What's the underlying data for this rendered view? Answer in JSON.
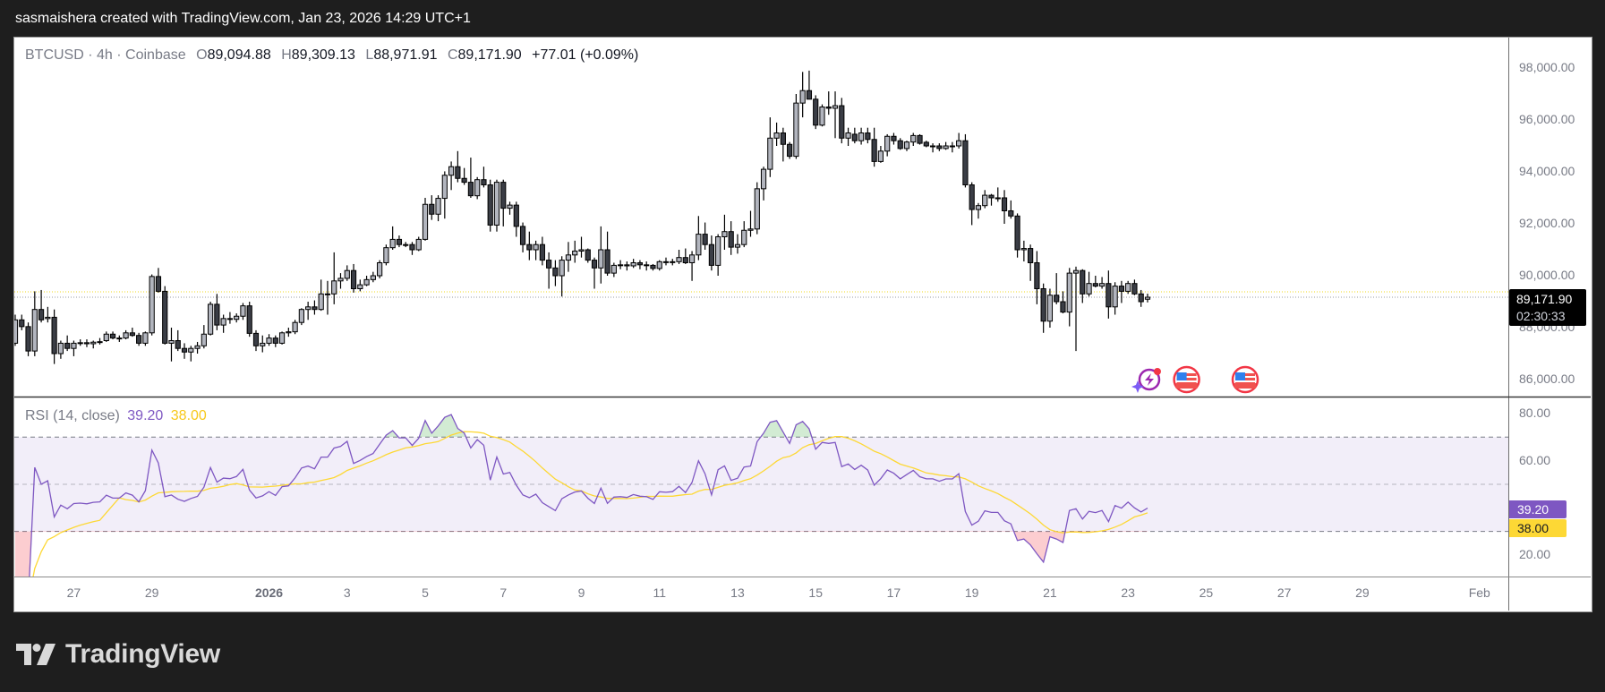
{
  "caption": "sasmaishera created with TradingView.com, Jan 23, 2026 14:29 UTC+1",
  "legend": {
    "symbol": "BTCUSD",
    "interval": "4h",
    "exchange": "Coinbase",
    "sep": "·",
    "o_label": "O",
    "o_value": "89,094.88",
    "h_label": "H",
    "h_value": "89,309.13",
    "l_label": "L",
    "l_value": "88,971.91",
    "c_label": "C",
    "c_value": "89,171.90",
    "change": "+77.01 (+0.09%)"
  },
  "price_tag": {
    "price": "89,171.90",
    "countdown": "02:30:33"
  },
  "rsi_legend": {
    "name": "RSI (14, close)",
    "value": "39.20",
    "ma_value": "38.00"
  },
  "rsi_tags": {
    "value": "39.20",
    "ma_value": "38.00"
  },
  "logo": {
    "text": "TradingView"
  },
  "colors": {
    "up_fill": "#b2b5be",
    "down_fill": "#3a3d45",
    "border": "#000000",
    "rsi_line": "#7e57c2",
    "rsi_ma": "#fdd835",
    "rsi_band": "#7e57c2",
    "last_price_line": "#9598a1",
    "reference_line": "#f2d91c",
    "overbought_fill": "#4caf50",
    "oversold_fill": "#f23645"
  },
  "events": [
    {
      "icon": "lightning-event-icon",
      "date": "2026-01-23 12:00"
    },
    {
      "icon": "us-flag-event-icon",
      "date": "2026-01-24 12:00"
    },
    {
      "icon": "us-flag-event-icon",
      "date": "2026-01-26 00:00"
    }
  ],
  "chart_data": {
    "type": "candlestick",
    "first_candle_time": "2025-12-25 12:00",
    "interval_hours": 4,
    "price_range": [
      85345,
      99172
    ],
    "price_ticks": [
      "98,000.00",
      "96,000.00",
      "94,000.00",
      "92,000.00",
      "90,000.00",
      "88,000.00",
      "86,000.00"
    ],
    "price_tick_values": [
      98000,
      96000,
      94000,
      92000,
      90000,
      88000,
      86000
    ],
    "last_price": 89171.9,
    "reference_line": 89380,
    "x_ticks": [
      {
        "label": "27",
        "date": "2025-12-27",
        "bold": false
      },
      {
        "label": "29",
        "date": "2025-12-29",
        "bold": false
      },
      {
        "label": "2026",
        "date": "2026-01-01",
        "bold": true
      },
      {
        "label": "3",
        "date": "2026-01-03",
        "bold": false
      },
      {
        "label": "5",
        "date": "2026-01-05",
        "bold": false
      },
      {
        "label": "7",
        "date": "2026-01-07",
        "bold": false
      },
      {
        "label": "9",
        "date": "2026-01-09",
        "bold": false
      },
      {
        "label": "11",
        "date": "2026-01-11",
        "bold": false
      },
      {
        "label": "13",
        "date": "2026-01-13",
        "bold": false
      },
      {
        "label": "15",
        "date": "2026-01-15",
        "bold": false
      },
      {
        "label": "17",
        "date": "2026-01-17",
        "bold": false
      },
      {
        "label": "19",
        "date": "2026-01-19",
        "bold": false
      },
      {
        "label": "21",
        "date": "2026-01-21",
        "bold": false
      },
      {
        "label": "23",
        "date": "2026-01-23",
        "bold": false
      },
      {
        "label": "25",
        "date": "2026-01-25",
        "bold": false
      },
      {
        "label": "27",
        "date": "2026-01-27",
        "bold": false
      },
      {
        "label": "29",
        "date": "2026-01-29",
        "bold": false
      },
      {
        "label": "Feb",
        "date": "2026-02-01",
        "bold": false
      }
    ],
    "candles_ohlc": [
      [
        87400,
        88500,
        87300,
        88300
      ],
      [
        88300,
        88500,
        87900,
        88040
      ],
      [
        88040,
        88200,
        86900,
        87100
      ],
      [
        87100,
        89400,
        86900,
        88700
      ],
      [
        88700,
        89450,
        88200,
        88300
      ],
      [
        88350,
        88800,
        88200,
        88400
      ],
      [
        88400,
        88700,
        86600,
        87000
      ],
      [
        87000,
        87500,
        86800,
        87400
      ],
      [
        87400,
        87700,
        87100,
        87200
      ],
      [
        87200,
        87500,
        86900,
        87400
      ],
      [
        87400,
        87550,
        87300,
        87420
      ],
      [
        87420,
        87550,
        87250,
        87380
      ],
      [
        87380,
        87500,
        87200,
        87440
      ],
      [
        87440,
        87600,
        87350,
        87460
      ],
      [
        87500,
        87850,
        87450,
        87750
      ],
      [
        87750,
        87850,
        87550,
        87600
      ],
      [
        87600,
        87700,
        87450,
        87600
      ],
      [
        87600,
        87900,
        87550,
        87800
      ],
      [
        87800,
        88000,
        87650,
        87700
      ],
      [
        87700,
        87800,
        87300,
        87400
      ],
      [
        87400,
        87850,
        87300,
        87800
      ],
      [
        87800,
        90050,
        87700,
        89970
      ],
      [
        89970,
        90300,
        89350,
        89400
      ],
      [
        89400,
        89600,
        87350,
        87400
      ],
      [
        87400,
        88000,
        86700,
        87500
      ],
      [
        87500,
        87900,
        87100,
        87200
      ],
      [
        87200,
        87400,
        86800,
        87060
      ],
      [
        87060,
        87300,
        86700,
        87200
      ],
      [
        87200,
        87450,
        87000,
        87300
      ],
      [
        87300,
        88100,
        87200,
        87750
      ],
      [
        87750,
        89000,
        87700,
        88900
      ],
      [
        88900,
        89300,
        87900,
        88100
      ],
      [
        88100,
        88500,
        87800,
        88350
      ],
      [
        88350,
        88600,
        88150,
        88320
      ],
      [
        88320,
        88550,
        88200,
        88440
      ],
      [
        88440,
        88950,
        88300,
        88840
      ],
      [
        88840,
        89000,
        87650,
        87780
      ],
      [
        87780,
        87900,
        87100,
        87300
      ],
      [
        87300,
        87700,
        87050,
        87400
      ],
      [
        87400,
        87750,
        87300,
        87600
      ],
      [
        87600,
        87700,
        87250,
        87400
      ],
      [
        87400,
        87850,
        87350,
        87800
      ],
      [
        87800,
        88000,
        87650,
        87840
      ],
      [
        87840,
        88300,
        87750,
        88200
      ],
      [
        88200,
        88750,
        88100,
        88700
      ],
      [
        88700,
        89000,
        88300,
        88800
      ],
      [
        88800,
        89050,
        88500,
        88700
      ],
      [
        88700,
        89850,
        88650,
        89300
      ],
      [
        89300,
        89800,
        88500,
        89300
      ],
      [
        89300,
        90900,
        88900,
        89800
      ],
      [
        89800,
        90100,
        89500,
        89900
      ],
      [
        89900,
        90400,
        89800,
        90200
      ],
      [
        90200,
        90450,
        89350,
        89500
      ],
      [
        89500,
        89850,
        89400,
        89650
      ],
      [
        89650,
        90000,
        89600,
        89850
      ],
      [
        89850,
        90150,
        89750,
        90000
      ],
      [
        90000,
        90600,
        89900,
        90500
      ],
      [
        90500,
        91200,
        90400,
        91080
      ],
      [
        91080,
        91900,
        91000,
        91400
      ],
      [
        91400,
        91550,
        91100,
        91200
      ],
      [
        91200,
        91300,
        91100,
        91200
      ],
      [
        91200,
        91300,
        90800,
        91000
      ],
      [
        91000,
        91500,
        90950,
        91400
      ],
      [
        91400,
        93000,
        91350,
        92750
      ],
      [
        92750,
        93100,
        92150,
        92370
      ],
      [
        92370,
        93100,
        92100,
        92980
      ],
      [
        92980,
        94020,
        92200,
        93870
      ],
      [
        93870,
        94400,
        93300,
        94200
      ],
      [
        94200,
        94800,
        93600,
        93750
      ],
      [
        93750,
        94150,
        93500,
        93600
      ],
      [
        93600,
        94550,
        93000,
        93080
      ],
      [
        93080,
        93800,
        92950,
        93700
      ],
      [
        93700,
        94200,
        93400,
        93500
      ],
      [
        93500,
        93700,
        91700,
        91950
      ],
      [
        91950,
        93700,
        91700,
        93600
      ],
      [
        93600,
        93700,
        91900,
        92600
      ],
      [
        92600,
        92850,
        92350,
        92720
      ],
      [
        92720,
        92850,
        91500,
        91900
      ],
      [
        91900,
        92050,
        90900,
        91200
      ],
      [
        91200,
        91700,
        90600,
        91000
      ],
      [
        91000,
        91350,
        90600,
        91200
      ],
      [
        91200,
        91500,
        90400,
        90600
      ],
      [
        90600,
        90900,
        89500,
        90300
      ],
      [
        90300,
        90600,
        89600,
        90000
      ],
      [
        90000,
        90750,
        89200,
        90600
      ],
      [
        90600,
        91300,
        90150,
        90800
      ],
      [
        90800,
        91350,
        90500,
        90950
      ],
      [
        90950,
        91500,
        90700,
        91000
      ],
      [
        91000,
        91050,
        90500,
        90600
      ],
      [
        90600,
        90700,
        89500,
        90300
      ],
      [
        90300,
        91900,
        89700,
        91000
      ],
      [
        91000,
        91700,
        90000,
        90100
      ],
      [
        90100,
        90500,
        89950,
        90400
      ],
      [
        90400,
        90600,
        90250,
        90420
      ],
      [
        90420,
        90550,
        90200,
        90380
      ],
      [
        90380,
        90650,
        90300,
        90500
      ],
      [
        90500,
        90600,
        90250,
        90420
      ],
      [
        90420,
        90550,
        90200,
        90400
      ],
      [
        90400,
        90450,
        90200,
        90280
      ],
      [
        90280,
        90600,
        90200,
        90540
      ],
      [
        90540,
        90700,
        90400,
        90520
      ],
      [
        90520,
        90650,
        90400,
        90540
      ],
      [
        90540,
        91000,
        90450,
        90700
      ],
      [
        90700,
        91050,
        90450,
        90500
      ],
      [
        90500,
        90950,
        89800,
        90800
      ],
      [
        90800,
        92300,
        90600,
        91600
      ],
      [
        91600,
        92050,
        91000,
        91200
      ],
      [
        91200,
        91550,
        90200,
        90400
      ],
      [
        90400,
        91600,
        90000,
        91500
      ],
      [
        91500,
        92350,
        91000,
        91700
      ],
      [
        91700,
        92100,
        90800,
        91100
      ],
      [
        91100,
        91600,
        90850,
        91200
      ],
      [
        91200,
        92100,
        91100,
        91750
      ],
      [
        91750,
        92500,
        91500,
        91800
      ],
      [
        91800,
        93600,
        91600,
        93350
      ],
      [
        93350,
        94200,
        92900,
        94100
      ],
      [
        94100,
        96100,
        93800,
        95300
      ],
      [
        95300,
        95900,
        95000,
        95500
      ],
      [
        95500,
        95700,
        94400,
        95060
      ],
      [
        95060,
        95150,
        94500,
        94600
      ],
      [
        94600,
        97000,
        94500,
        96650
      ],
      [
        96650,
        97850,
        96100,
        97130
      ],
      [
        97130,
        97900,
        96950,
        96800
      ],
      [
        96800,
        96950,
        95650,
        95800
      ],
      [
        95800,
        96600,
        95750,
        96500
      ],
      [
        96500,
        97100,
        96200,
        96450
      ],
      [
        96450,
        97100,
        95300,
        96550
      ],
      [
        96550,
        96850,
        95100,
        95300
      ],
      [
        95300,
        95700,
        95000,
        95500
      ],
      [
        95450,
        95700,
        95100,
        95200
      ],
      [
        95200,
        95700,
        95050,
        95500
      ],
      [
        95500,
        95700,
        95100,
        95250
      ],
      [
        95250,
        95700,
        94200,
        94400
      ],
      [
        94400,
        95000,
        94350,
        94800
      ],
      [
        94800,
        95450,
        94600,
        95370
      ],
      [
        95370,
        95500,
        95050,
        95200
      ],
      [
        95200,
        95300,
        94850,
        94900
      ],
      [
        94900,
        95200,
        94800,
        95150
      ],
      [
        95150,
        95500,
        95000,
        95400
      ],
      [
        95400,
        95450,
        95050,
        95100
      ],
      [
        95140,
        95200,
        94950,
        95000
      ],
      [
        95000,
        95100,
        94750,
        95000
      ],
      [
        95000,
        95100,
        94800,
        94900
      ],
      [
        94900,
        95150,
        94850,
        95000
      ],
      [
        95000,
        95150,
        94750,
        95000
      ],
      [
        95000,
        95500,
        94900,
        95200
      ],
      [
        95200,
        95450,
        93400,
        93500
      ],
      [
        93500,
        93600,
        91950,
        92550
      ],
      [
        92550,
        92800,
        92200,
        92700
      ],
      [
        92700,
        93300,
        92600,
        93100
      ],
      [
        93100,
        93150,
        92700,
        93000
      ],
      [
        93000,
        93400,
        92850,
        93000
      ],
      [
        93000,
        93300,
        92000,
        92500
      ],
      [
        92500,
        92900,
        92200,
        92300
      ],
      [
        92300,
        92400,
        90700,
        91000
      ],
      [
        91000,
        91350,
        90550,
        91050
      ],
      [
        91050,
        91200,
        89800,
        90500
      ],
      [
        90500,
        90950,
        88900,
        89500
      ],
      [
        89500,
        89700,
        87800,
        88250
      ],
      [
        88250,
        89500,
        88000,
        89250
      ],
      [
        89250,
        90100,
        88900,
        89000
      ],
      [
        89000,
        89400,
        88550,
        88600
      ],
      [
        88600,
        90300,
        88050,
        90100
      ],
      [
        90100,
        90350,
        87100,
        90200
      ],
      [
        90200,
        90250,
        88950,
        89300
      ],
      [
        89300,
        90150,
        89200,
        89700
      ],
      [
        89700,
        90000,
        89550,
        89600
      ],
      [
        89600,
        89950,
        89500,
        89700
      ],
      [
        89700,
        90200,
        88350,
        88800
      ],
      [
        88800,
        89750,
        88500,
        89600
      ],
      [
        89600,
        89800,
        88950,
        89400
      ],
      [
        89400,
        89800,
        89300,
        89700
      ],
      [
        89700,
        89850,
        89250,
        89300
      ],
      [
        89300,
        89450,
        88800,
        89000
      ],
      [
        89094.88,
        89309.13,
        88971.91,
        89171.9
      ]
    ],
    "rsi": {
      "length": 14,
      "source": "close",
      "ma_length": 14,
      "range": [
        10.9,
        86.8
      ],
      "levels": [
        70,
        50,
        30
      ],
      "ticks": [
        "80.00",
        "60.00",
        "20.00"
      ],
      "tick_values": [
        80,
        60,
        20
      ],
      "value": 39.2,
      "ma_value": 38.0
    }
  }
}
